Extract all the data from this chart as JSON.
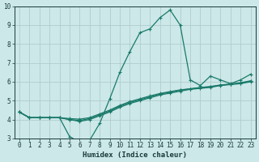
{
  "xlabel": "Humidex (Indice chaleur)",
  "ylabel": "",
  "bg_color": "#cce8e8",
  "grid_color": "#b0cccc",
  "line_color": "#1a7a6a",
  "x_main": [
    0,
    1,
    2,
    3,
    4,
    5,
    6,
    7,
    8,
    9,
    10,
    11,
    12,
    13,
    14,
    15,
    16,
    17,
    18,
    19,
    20,
    21,
    22,
    23
  ],
  "y_main": [
    4.4,
    4.1,
    4.1,
    4.1,
    4.1,
    3.1,
    2.8,
    2.9,
    3.8,
    5.1,
    6.5,
    7.6,
    8.6,
    8.8,
    9.4,
    9.8,
    9.0,
    6.1,
    5.8,
    6.3,
    6.1,
    5.9,
    6.1,
    6.4
  ],
  "x_line2": [
    0,
    1,
    2,
    3,
    4,
    5,
    6,
    7,
    8,
    9,
    10,
    11,
    12,
    13,
    14,
    15,
    16,
    17,
    18,
    19,
    20,
    21,
    22,
    23
  ],
  "y_line2": [
    4.4,
    4.1,
    4.1,
    4.1,
    4.1,
    4.0,
    3.9,
    4.0,
    4.2,
    4.4,
    4.65,
    4.85,
    5.0,
    5.15,
    5.3,
    5.4,
    5.5,
    5.6,
    5.65,
    5.7,
    5.8,
    5.85,
    5.9,
    6.0
  ],
  "x_line3": [
    0,
    1,
    2,
    3,
    4,
    5,
    6,
    7,
    8,
    9,
    10,
    11,
    12,
    13,
    14,
    15,
    16,
    17,
    18,
    19,
    20,
    21,
    22,
    23
  ],
  "y_line3": [
    4.4,
    4.1,
    4.1,
    4.1,
    4.1,
    4.0,
    3.95,
    4.05,
    4.25,
    4.45,
    4.7,
    4.9,
    5.05,
    5.2,
    5.35,
    5.45,
    5.55,
    5.62,
    5.68,
    5.73,
    5.82,
    5.87,
    5.93,
    6.03
  ],
  "x_line4": [
    0,
    1,
    2,
    3,
    4,
    5,
    6,
    7,
    8,
    9,
    10,
    11,
    12,
    13,
    14,
    15,
    16,
    17,
    18,
    19,
    20,
    21,
    22,
    23
  ],
  "y_line4": [
    4.4,
    4.1,
    4.1,
    4.1,
    4.1,
    4.05,
    4.02,
    4.1,
    4.3,
    4.5,
    4.75,
    4.95,
    5.1,
    5.25,
    5.38,
    5.48,
    5.57,
    5.63,
    5.7,
    5.75,
    5.83,
    5.88,
    5.95,
    6.05
  ],
  "ylim": [
    3.0,
    10.0
  ],
  "xlim": [
    -0.5,
    23.5
  ],
  "yticks": [
    3,
    4,
    5,
    6,
    7,
    8,
    9,
    10
  ],
  "xticks": [
    0,
    1,
    2,
    3,
    4,
    5,
    6,
    7,
    8,
    9,
    10,
    11,
    12,
    13,
    14,
    15,
    16,
    17,
    18,
    19,
    20,
    21,
    22,
    23
  ],
  "tick_fontsize": 5.5,
  "xlabel_fontsize": 6.5
}
